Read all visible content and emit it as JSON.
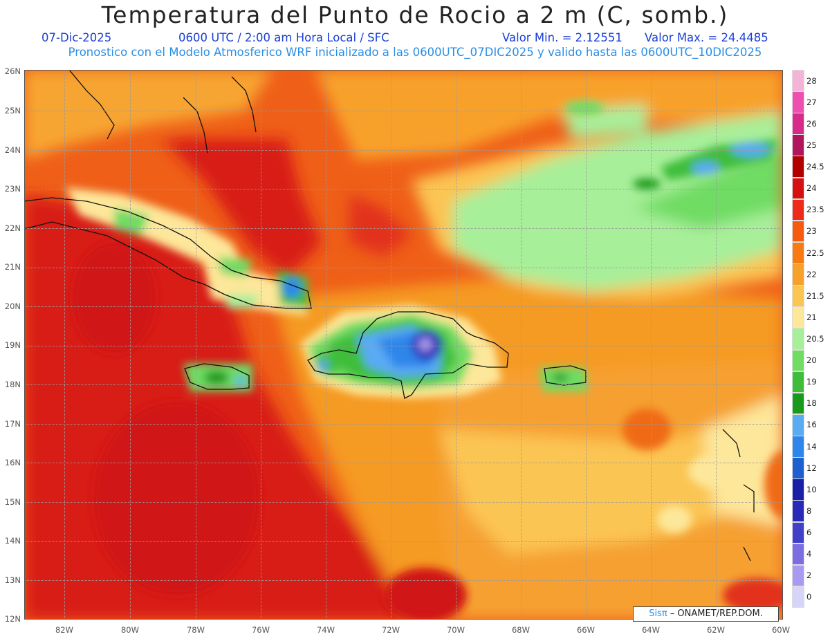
{
  "header": {
    "title": "Temperatura del Punto de Rocio a 2 m (C, somb.)",
    "date": "07-Dic-2025",
    "time": "0600 UTC / 2:00 am Hora Local / SFC",
    "vmin": "Valor Min. = 2.12551",
    "vmax": "Valor Max. = 24.4485",
    "model_info": "Pronostico con el Modelo Atmosferico WRF inicializado a las 0600UTC_07DIC2025 y valido hasta las  0600UTC_10DIC2025"
  },
  "map": {
    "lon_range": [
      -83,
      -60
    ],
    "lat_range": [
      12,
      26
    ],
    "lat_labels": [
      "26N",
      "25N",
      "24N",
      "23N",
      "22N",
      "21N",
      "20N",
      "19N",
      "18N",
      "17N",
      "16N",
      "15N",
      "14N",
      "13N",
      "12N"
    ],
    "lon_labels": [
      "82W",
      "80W",
      "78W",
      "76W",
      "74W",
      "72W",
      "70W",
      "68W",
      "66W",
      "64W",
      "62W",
      "60W"
    ]
  },
  "legend": {
    "labels": [
      "28",
      "27",
      "26",
      "25",
      "24.5",
      "24",
      "23.5",
      "23",
      "22.5",
      "22",
      "21.5",
      "21",
      "20.5",
      "20",
      "19",
      "18",
      "16",
      "14",
      "12",
      "10",
      "8",
      "6",
      "4",
      "2",
      "0"
    ],
    "colors": [
      "#f4b4d8",
      "#ee4fb0",
      "#d82a8a",
      "#b0155e",
      "#b20000",
      "#d61010",
      "#ee2a18",
      "#f55a10",
      "#f77a12",
      "#f8a12a",
      "#fbc552",
      "#fde79a",
      "#a8ef9a",
      "#6fdc64",
      "#3fbd3a",
      "#1a9a1c",
      "#5aaaf4",
      "#2f86ea",
      "#1e5fcf",
      "#1a20a8",
      "#2a2ab8",
      "#4040c8",
      "#7a6ee0",
      "#a79af0",
      "#d6d4f8"
    ]
  },
  "colors": {
    "dark_red": "#d61818",
    "red": "#ea3a16",
    "orange_red": "#f06a18",
    "orange": "#f8a12a",
    "light_orange": "#fbc552",
    "yellow": "#fde79a",
    "light_green": "#a8ef9a",
    "green": "#6fdc64",
    "mid_green": "#3fbd3a",
    "dark_green": "#1a9a1c",
    "light_blue": "#5aaaf4",
    "blue": "#2f86ea",
    "purple": "#6a4ad6",
    "violet": "#a79af0"
  },
  "credit": {
    "sis": "Sisπ",
    "text": " – ONAMET/REP.DOM."
  }
}
